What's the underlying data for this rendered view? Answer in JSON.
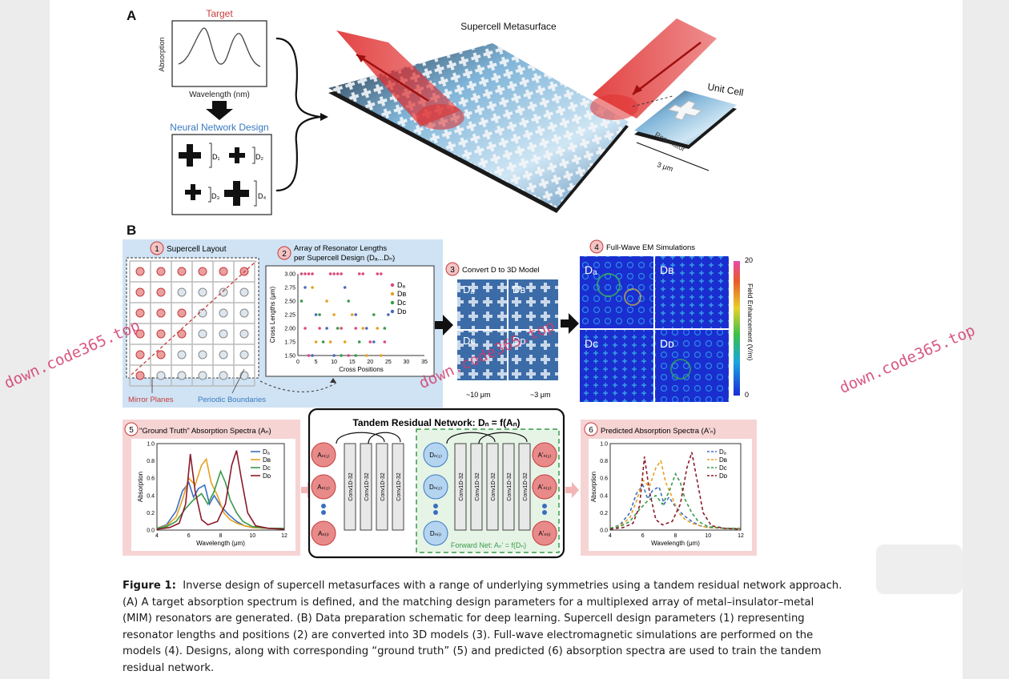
{
  "panel_a": {
    "letter": "A",
    "target_title": "Target",
    "absorption_label": "Absorption",
    "wavelength_label": "Wavelength (nm)",
    "nn_title": "Neural Network Design",
    "d1": "D₁",
    "d2": "D₂",
    "d3": "D₃",
    "d4": "D₄",
    "supercell_title": "Supercell Metasurface",
    "unit_cell": "Unit Cell",
    "resonator": "Resonator",
    "scale": "3 μm"
  },
  "panel_b": {
    "letter": "B",
    "step1": "Supercell Layout",
    "step2_line1": "Array of Resonator Lengths",
    "step2_line2": "per Supercell Design (Dₐ...Dₙ)",
    "step3": "Convert D to 3D Model",
    "step4": "Full-Wave EM Simulations",
    "mirror_planes": "Mirror Planes",
    "periodic_boundaries": "Periodic Boundaries",
    "scale_10": "~10 μm",
    "scale_3": "~3 μm",
    "colorbar_max": "20",
    "colorbar_min": "0",
    "colorbar_label": "Field Enhancement (V/m)",
    "cross_lengths_label": "Cross Lengths (μm)",
    "cross_positions_label": "Cross Positions",
    "step5": "\"Ground Truth\" Absorption Spectra (Aₙ)",
    "step6": "Predicted Absorption Spectra (A'ₙ)",
    "tandem_title": "Tandem Residual Network: Dₙ = f(Aₙ)",
    "forward_net": "Forward Net: Aₙ' = f(Dₙ)",
    "conv_label": "Conv1D-32",
    "wavelength_um": "Wavelength (μm)",
    "absorption": "Absorption",
    "legend": [
      "Dₐ",
      "Dʙ",
      "Dᴄ",
      "Dᴅ"
    ],
    "quadrants": [
      "Dₐ",
      "Dʙ",
      "Dᴄ",
      "Dᴅ"
    ],
    "a_nodes": [
      "Aₙ₍₁₎",
      "Aₙ₍₂₎",
      "Aₙ₍ᵢ₎"
    ],
    "d_nodes": [
      "Dₙ₍₁₎",
      "Dₙ₍₂₎",
      "Dₙ₍ᵢ₎"
    ],
    "ap_nodes": [
      "A'ₙ₍₁₎",
      "A'ₙ₍₂₎",
      "A'ₙ₍ᵢ₎"
    ],
    "step_numbers": [
      "1",
      "2",
      "3",
      "4",
      "5",
      "6"
    ]
  },
  "caption": {
    "label": "Figure 1:",
    "text": "Inverse design of supercell metasurfaces with a range of underlying symmetries using a tandem residual network approach. (A) A target absorption spectrum is defined, and the matching design parameters for a multiplexed array of metal–insulator–metal (MIM) resonators are generated. (B) Data preparation schematic for deep learning. Supercell design parameters (1) representing resonator lengths and positions (2) are converted into 3D models (3). Full-wave electromagnetic simulations are performed on the models (4). Designs, along with corresponding “ground truth” (5) and predicted (6) absorption spectra are used to train the tandem residual network."
  },
  "watermark": "down.code365.top",
  "chart_data": [
    {
      "type": "scatter",
      "title": "Array of Resonator Lengths per Supercell Design",
      "xlabel": "Cross Positions",
      "ylabel": "Cross Lengths (μm)",
      "xlim": [
        0,
        35
      ],
      "ylim": [
        1.5,
        3.0
      ],
      "xticks": [
        0,
        5,
        10,
        15,
        20,
        25,
        30,
        35
      ],
      "yticks": [
        1.5,
        1.75,
        2.0,
        2.25,
        2.5,
        2.75,
        3.0
      ],
      "series": [
        {
          "name": "Dₐ",
          "color": "#d94a7a",
          "points": [
            [
              1,
              3.0
            ],
            [
              2,
              3.0
            ],
            [
              3,
              3.0
            ],
            [
              4,
              3.0
            ],
            [
              9,
              3.0
            ],
            [
              10,
              3.0
            ],
            [
              11,
              3.0
            ],
            [
              12,
              3.0
            ],
            [
              17,
              3.0
            ],
            [
              18,
              3.0
            ],
            [
              22,
              3.0
            ],
            [
              23,
              3.0
            ],
            [
              2,
              2.0
            ],
            [
              6,
              2.0
            ],
            [
              12,
              2.0
            ],
            [
              16,
              2.0
            ],
            [
              20,
              1.75
            ],
            [
              24,
              1.75
            ],
            [
              3,
              1.5
            ],
            [
              14,
              1.5
            ]
          ]
        },
        {
          "name": "Dʙ",
          "color": "#e8a020",
          "points": [
            [
              4,
              2.75
            ],
            [
              8,
              2.5
            ],
            [
              10,
              2.25
            ],
            [
              15,
              2.25
            ],
            [
              18,
              2.0
            ],
            [
              22,
              2.0
            ],
            [
              5,
              1.75
            ],
            [
              9,
              1.75
            ],
            [
              13,
              1.75
            ],
            [
              19,
              1.5
            ],
            [
              23,
              1.5
            ]
          ]
        },
        {
          "name": "Dᴄ",
          "color": "#3a9a4a",
          "points": [
            [
              1,
              2.5
            ],
            [
              6,
              2.25
            ],
            [
              11,
              2.0
            ],
            [
              14,
              2.5
            ],
            [
              17,
              1.75
            ],
            [
              21,
              2.25
            ],
            [
              7,
              1.75
            ],
            [
              12,
              1.5
            ],
            [
              16,
              1.5
            ],
            [
              24,
              2.0
            ]
          ]
        },
        {
          "name": "Dᴅ",
          "color": "#4a6ab8",
          "points": [
            [
              2,
              2.75
            ],
            [
              5,
              2.25
            ],
            [
              8,
              2.0
            ],
            [
              13,
              2.75
            ],
            [
              16,
              2.25
            ],
            [
              19,
              2.0
            ],
            [
              21,
              1.75
            ],
            [
              4,
              1.5
            ],
            [
              10,
              1.5
            ],
            [
              25,
              2.25
            ]
          ]
        }
      ]
    },
    {
      "type": "line",
      "title": "\"Ground Truth\" Absorption Spectra (Aₙ)",
      "xlabel": "Wavelength (μm)",
      "ylabel": "Absorption",
      "xlim": [
        4,
        12
      ],
      "ylim": [
        0,
        1.0
      ],
      "xticks": [
        4,
        6,
        8,
        10,
        12
      ],
      "yticks": [
        0.0,
        0.2,
        0.4,
        0.6,
        0.8,
        1.0
      ],
      "series": [
        {
          "name": "Dₐ",
          "color": "#3a6fc0",
          "x": [
            4,
            4.6,
            5.2,
            5.6,
            6.0,
            6.3,
            6.6,
            7.0,
            7.3,
            7.6,
            8.0,
            8.5,
            9.0,
            9.5,
            10,
            11,
            12
          ],
          "y": [
            0.02,
            0.06,
            0.22,
            0.45,
            0.55,
            0.38,
            0.48,
            0.52,
            0.3,
            0.4,
            0.28,
            0.18,
            0.1,
            0.05,
            0.03,
            0.02,
            0.02
          ]
        },
        {
          "name": "Dʙ",
          "color": "#e8a020",
          "x": [
            4,
            4.6,
            5.2,
            5.6,
            6.0,
            6.4,
            6.8,
            7.1,
            7.4,
            7.8,
            8.2,
            8.6,
            9.0,
            9.5,
            10,
            11,
            12
          ],
          "y": [
            0.02,
            0.05,
            0.15,
            0.35,
            0.6,
            0.52,
            0.75,
            0.82,
            0.55,
            0.4,
            0.2,
            0.12,
            0.08,
            0.05,
            0.03,
            0.02,
            0.02
          ]
        },
        {
          "name": "Dᴄ",
          "color": "#3a9a4a",
          "x": [
            4,
            4.6,
            5.2,
            5.8,
            6.3,
            6.8,
            7.2,
            7.6,
            8.0,
            8.3,
            8.6,
            9.0,
            9.4,
            10,
            11,
            12
          ],
          "y": [
            0.02,
            0.04,
            0.1,
            0.25,
            0.35,
            0.42,
            0.3,
            0.45,
            0.68,
            0.55,
            0.35,
            0.2,
            0.1,
            0.04,
            0.02,
            0.02
          ]
        },
        {
          "name": "Dᴅ",
          "color": "#8a1a2a",
          "x": [
            4,
            4.8,
            5.4,
            5.8,
            6.1,
            6.4,
            6.8,
            7.2,
            7.8,
            8.3,
            8.7,
            9.0,
            9.3,
            9.7,
            10.2,
            11,
            12
          ],
          "y": [
            0.01,
            0.03,
            0.08,
            0.3,
            0.88,
            0.45,
            0.12,
            0.06,
            0.1,
            0.3,
            0.75,
            0.92,
            0.6,
            0.2,
            0.05,
            0.02,
            0.01
          ]
        }
      ]
    },
    {
      "type": "line",
      "title": "Predicted Absorption Spectra (A'ₙ)",
      "xlabel": "Wavelength (μm)",
      "ylabel": "Absorption",
      "xlim": [
        4,
        12
      ],
      "ylim": [
        0,
        1.0
      ],
      "xticks": [
        4,
        6,
        8,
        10,
        12
      ],
      "yticks": [
        0.0,
        0.2,
        0.4,
        0.6,
        0.8,
        1.0
      ],
      "series": [
        {
          "name": "Dₐ",
          "color": "#3a6fc0",
          "x": [
            4,
            4.6,
            5.2,
            5.6,
            6.0,
            6.3,
            6.6,
            7.0,
            7.3,
            7.6,
            8.0,
            8.5,
            9.0,
            9.5,
            10,
            11,
            12
          ],
          "y": [
            0.02,
            0.06,
            0.2,
            0.42,
            0.52,
            0.36,
            0.46,
            0.5,
            0.3,
            0.38,
            0.27,
            0.17,
            0.1,
            0.05,
            0.03,
            0.02,
            0.02
          ]
        },
        {
          "name": "Dʙ",
          "color": "#e8a020",
          "x": [
            4,
            4.6,
            5.2,
            5.6,
            6.0,
            6.4,
            6.8,
            7.1,
            7.4,
            7.8,
            8.2,
            8.6,
            9.0,
            9.5,
            10,
            11,
            12
          ],
          "y": [
            0.02,
            0.05,
            0.14,
            0.33,
            0.58,
            0.5,
            0.72,
            0.8,
            0.55,
            0.38,
            0.2,
            0.12,
            0.08,
            0.05,
            0.03,
            0.02,
            0.02
          ]
        },
        {
          "name": "Dᴄ",
          "color": "#3a9a4a",
          "x": [
            4,
            4.6,
            5.2,
            5.8,
            6.3,
            6.8,
            7.2,
            7.6,
            8.0,
            8.3,
            8.6,
            9.0,
            9.4,
            10,
            11,
            12
          ],
          "y": [
            0.02,
            0.04,
            0.1,
            0.24,
            0.34,
            0.4,
            0.3,
            0.44,
            0.65,
            0.55,
            0.35,
            0.2,
            0.1,
            0.04,
            0.02,
            0.02
          ]
        },
        {
          "name": "Dᴅ",
          "color": "#8a1a2a",
          "x": [
            4,
            4.8,
            5.4,
            5.8,
            6.1,
            6.4,
            6.8,
            7.2,
            7.8,
            8.3,
            8.7,
            9.0,
            9.3,
            9.7,
            10.2,
            11,
            12
          ],
          "y": [
            0.01,
            0.03,
            0.08,
            0.28,
            0.85,
            0.45,
            0.12,
            0.06,
            0.1,
            0.3,
            0.72,
            0.9,
            0.6,
            0.2,
            0.05,
            0.02,
            0.01
          ]
        }
      ]
    }
  ]
}
